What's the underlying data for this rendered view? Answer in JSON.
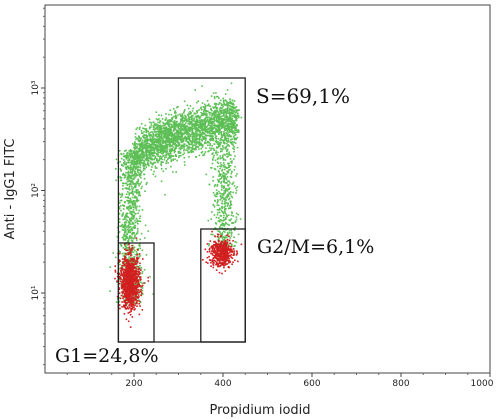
{
  "chart_data": {
    "type": "scatter",
    "title": "",
    "xlabel": "Propidium iodid",
    "ylabel": "Anti - IgG1 FITC",
    "xlim": [
      0,
      1000
    ],
    "ylim_log": [
      1,
      10000
    ],
    "y_scale": "log",
    "x_ticks": [
      "200",
      "400",
      "600",
      "800",
      "1000"
    ],
    "y_ticks": [
      "10¹",
      "10²",
      "10³"
    ],
    "series": [
      {
        "color": "#5cbf55",
        "cluster_shape": "S-phase arc",
        "regions": [
          {
            "x": [
              175,
              250
            ],
            "y": [
              8,
              250
            ]
          },
          {
            "x": [
              200,
              420
            ],
            "y": [
              150,
              800
            ]
          },
          {
            "x": [
              370,
              430
            ],
            "y": [
              35,
              400
            ]
          }
        ]
      },
      {
        "color": "#d11f1f",
        "clusters": [
          {
            "x_center": 190,
            "y_center": 13
          },
          {
            "x_center": 395,
            "y_center": 25
          }
        ]
      }
    ],
    "gates": [
      {
        "label": "G1=24,8%",
        "x": [
          165,
          245
        ],
        "y": [
          4.0,
          30
        ]
      },
      {
        "label": "S=69,1%",
        "x": [
          165,
          450
        ],
        "y": [
          4.0,
          1100
        ]
      },
      {
        "label": "G2/M=6,1%",
        "x": [
          350,
          450
        ],
        "y": [
          4.0,
          45
        ]
      }
    ],
    "grid": false
  }
}
